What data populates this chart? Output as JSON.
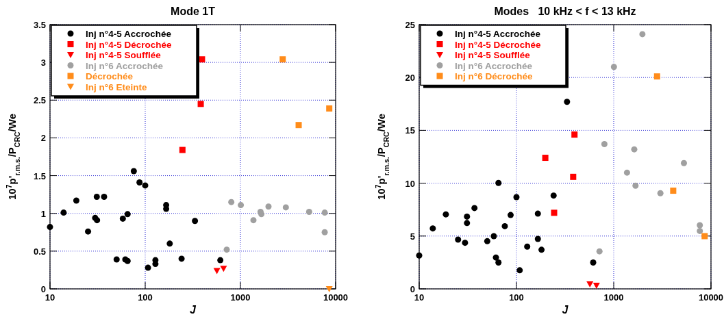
{
  "chart_data": [
    {
      "type": "scatter",
      "title": "Mode 1T",
      "xlabel": "J",
      "ylabel": "10$^{7}$p'$_{r.m.s.}$/P$_{CRC}$/We",
      "log": "x",
      "xlim": [
        10,
        10000
      ],
      "xticks": [
        10,
        100,
        1000,
        10000
      ],
      "ylim": [
        0,
        3.5
      ],
      "yticks": [
        0,
        0.5,
        1,
        1.5,
        2,
        2.5,
        3,
        3.5
      ],
      "grid": true,
      "legend": "top left",
      "series": [
        {
          "name": "Inj n°4-5 Accrochée",
          "color": "#000000",
          "marker": "circle",
          "x": [
            10,
            13.9,
            18.9,
            25.1,
            29.8,
            31.2,
            31,
            37,
            50.1,
            58.2,
            61.8,
            65.3,
            65.3,
            75.9,
            87.1,
            100,
            107,
            128,
            128,
            166,
            166,
            181,
            241,
            333,
            615
          ],
          "values": [
            0.82,
            1.01,
            1.17,
            0.76,
            0.94,
            0.91,
            1.22,
            1.22,
            0.39,
            0.93,
            0.39,
            0.37,
            0.99,
            1.56,
            1.41,
            1.37,
            0.28,
            0.38,
            0.33,
            1.11,
            1.06,
            0.6,
            0.4,
            0.9,
            0.38
          ]
        },
        {
          "name": "Inj n°4-5 Décrochée",
          "color": "#ff0000",
          "marker": "square",
          "x": [
            395,
            383,
            246
          ],
          "values": [
            3.04,
            2.45,
            1.84
          ]
        },
        {
          "name": "Inj n°4-5 Soufflée",
          "color": "#ff0000",
          "marker": "triangle",
          "x": [
            566,
            665
          ],
          "values": [
            0.24,
            0.27
          ]
        },
        {
          "name": "Inj n°6 Accrochée",
          "color": "#a0a0a0",
          "marker": "circle",
          "x": [
            718,
            802,
            1010,
            1370,
            1627,
            1660,
            1972,
            3000,
            5270,
            7680,
            7680
          ],
          "values": [
            0.52,
            1.15,
            1.11,
            0.91,
            1.02,
            0.99,
            1.09,
            1.08,
            1.02,
            1.01,
            0.75
          ]
        },
        {
          "name": "Décrochée",
          "color": "#ff8c1a",
          "marker": "square",
          "x": [
            2780,
            4090,
            8570
          ],
          "values": [
            3.04,
            2.17,
            2.39
          ]
        },
        {
          "name": "Inj n°6 Eteinte",
          "color": "#ff8c1a",
          "marker": "triangle",
          "x": [
            8570
          ],
          "values": [
            0
          ]
        }
      ]
    },
    {
      "type": "scatter",
      "title": "Modes   10 kHz < f < 13 kHz",
      "xlabel": "J",
      "ylabel": "10$^{7}$p'$_{r.m.s.}$/P$_{CRC}$/We",
      "log": "x",
      "xlim": [
        10,
        10000
      ],
      "xticks": [
        10,
        100,
        1000,
        10000
      ],
      "ylim": [
        0,
        25
      ],
      "yticks": [
        0,
        5,
        10,
        15,
        20,
        25
      ],
      "grid": true,
      "legend": "top left",
      "series": [
        {
          "name": "Inj n°4-5 Accrochée",
          "color": "#000000",
          "marker": "circle",
          "x": [
            10,
            13.8,
            18.8,
            25.1,
            29.6,
            31,
            31,
            37,
            50.1,
            58.5,
            61.5,
            65.3,
            65.3,
            75.9,
            87.1,
            100,
            108,
            129,
            166,
            166,
            181,
            241,
            331,
            615
          ],
          "values": [
            3.16,
            5.72,
            7.05,
            4.66,
            4.36,
            6.84,
            6.23,
            7.65,
            4.51,
            4.99,
            2.97,
            2.49,
            10.02,
            5.93,
            6.99,
            8.68,
            1.76,
            4.0,
            7.12,
            4.73,
            3.7,
            8.83,
            17.7,
            2.49
          ]
        },
        {
          "name": "Inj n°4-5 Décrochée",
          "color": "#ff0000",
          "marker": "square",
          "x": [
            198,
            395,
            383,
            244
          ],
          "values": [
            12.4,
            14.6,
            10.6,
            7.2
          ]
        },
        {
          "name": "Inj n°4-5 Soufflée",
          "color": "#ff0000",
          "marker": "triangle",
          "x": [
            569,
            665
          ],
          "values": [
            0.45,
            0.32
          ]
        },
        {
          "name": "Inj n°6 Accrochée",
          "color": "#a0a0a0",
          "marker": "circle",
          "x": [
            714,
            802,
            1005,
            1370,
            1626,
            1675,
            1972,
            3020,
            5270,
            7680,
            7680
          ],
          "values": [
            3.55,
            13.7,
            21.0,
            11.0,
            13.2,
            9.76,
            24.1,
            9.05,
            11.9,
            6.02,
            5.48
          ]
        },
        {
          "name": "Inj n°6 Décrochée",
          "color": "#ff8c1a",
          "marker": "square",
          "x": [
            2790,
            4090,
            8610
          ],
          "values": [
            20.1,
            9.29,
            4.99
          ]
        }
      ]
    }
  ]
}
